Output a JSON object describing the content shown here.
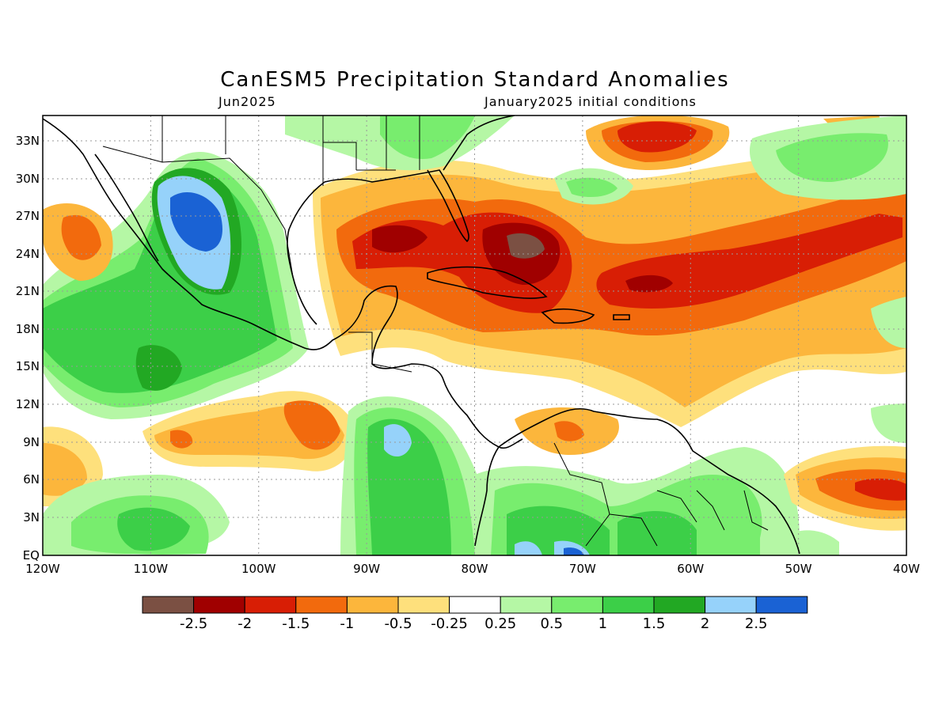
{
  "title": "CanESM5 Precipitation Standard Anomalies",
  "subtitle_left": "Jun2025",
  "subtitle_right": "January2025 initial conditions",
  "lat_labels": [
    "33N",
    "30N",
    "27N",
    "24N",
    "21N",
    "18N",
    "15N",
    "12N",
    "9N",
    "6N",
    "3N",
    "EQ"
  ],
  "lon_labels": [
    "120W",
    "110W",
    "100W",
    "90W",
    "80W",
    "70W",
    "60W",
    "50W",
    "40W"
  ],
  "colorbar": {
    "colors": [
      "#7b5043",
      "#a00000",
      "#d81e05",
      "#f26a0d",
      "#fcb63c",
      "#fee07c",
      "#ffffff",
      "#b5f7a5",
      "#78ed6e",
      "#3ccf48",
      "#22a823",
      "#96d2fa",
      "#1a62d4"
    ],
    "labels": [
      "-2.5",
      "-2",
      "-1.5",
      "-1",
      "-0.5",
      "-0.25",
      "0.25",
      "0.5",
      "1",
      "1.5",
      "2",
      "2.5"
    ]
  }
}
